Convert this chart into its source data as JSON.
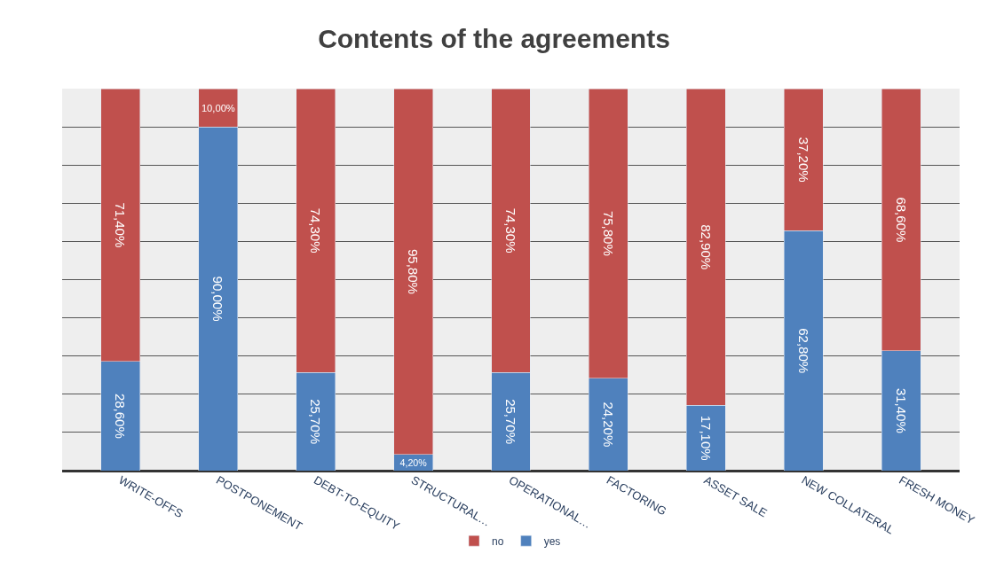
{
  "chart_data": {
    "type": "bar",
    "title": "Contents of the agreements",
    "stacked": true,
    "categories": [
      "WRITE-OFFS",
      "POSTPONEMENT",
      "DEBT-TO-EQUITY",
      "STRUCTURAL…",
      "OPERATIONAL…",
      "FACTORING",
      "ASSET SALE",
      "NEW COLLATERAL",
      "FRESH MONEY"
    ],
    "series": [
      {
        "name": "yes",
        "color": "#4f81bd",
        "values": [
          28.6,
          90.0,
          25.7,
          4.2,
          25.7,
          24.2,
          17.1,
          62.8,
          31.4
        ],
        "value_labels": [
          "28,60%",
          "90,00%",
          "25,70%",
          "4,20%",
          "25,70%",
          "24,20%",
          "17,10%",
          "62,80%",
          "31,40%"
        ]
      },
      {
        "name": "no",
        "color": "#c0504d",
        "values": [
          71.4,
          10.0,
          74.3,
          95.8,
          74.3,
          75.8,
          82.9,
          37.2,
          68.6
        ],
        "value_labels": [
          "71,40%",
          "10,00%",
          "74,30%",
          "95,80%",
          "74,30%",
          "75,80%",
          "82,90%",
          "37,20%",
          "68,60%"
        ]
      }
    ],
    "ylim": [
      0,
      100
    ],
    "yticks": [
      {
        "value": 0,
        "label": null
      },
      {
        "value": 10,
        "label": null
      },
      {
        "value": 20,
        "label": null
      },
      {
        "value": 30,
        "label": null
      },
      {
        "value": 40,
        "label": null
      },
      {
        "value": 50,
        "label": null
      },
      {
        "value": 60,
        "label": null
      },
      {
        "value": 70,
        "label": null
      },
      {
        "value": 80,
        "label": null
      },
      {
        "value": 90,
        "label": null
      },
      {
        "value": 100,
        "label": null
      }
    ],
    "tick_labels": "x",
    "grid": "y",
    "legend": "bottom"
  }
}
